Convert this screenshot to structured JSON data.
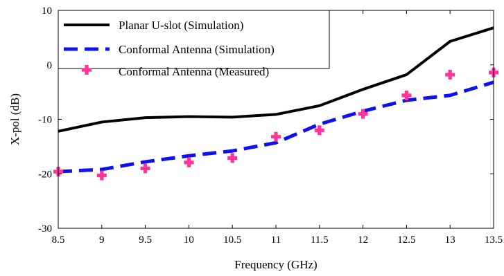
{
  "chart_data": {
    "type": "line",
    "title": "",
    "xlabel": "Frequency (GHz)",
    "ylabel": "X-pol (dB)",
    "xlim": [
      8.5,
      13.5
    ],
    "ylim": [
      -30,
      10
    ],
    "xticks": [
      8.5,
      9,
      9.5,
      10,
      10.5,
      11,
      11.5,
      12,
      12.5,
      13,
      13.5
    ],
    "yticks": [
      -30,
      -20,
      -10,
      0,
      10
    ],
    "xtick_labels": [
      "8.5",
      "9",
      "9.5",
      "10",
      "10.5",
      "11",
      "11.5",
      "12",
      "12.5",
      "13",
      "13.5"
    ],
    "ytick_labels": [
      "-30",
      "-20",
      "-10",
      "0",
      "10"
    ],
    "grid": false,
    "legend_position": "top-left",
    "x": [
      8.5,
      9,
      9.5,
      10,
      10.5,
      11,
      11.5,
      12,
      12.5,
      13,
      13.5
    ],
    "series": [
      {
        "name": "Planar U-slot (Simulation)",
        "style": "solid",
        "color": "#000000",
        "values": [
          -12.2,
          -10.5,
          -9.7,
          -9.5,
          -9.6,
          -9.1,
          -7.5,
          -4.5,
          -1.8,
          4.3,
          6.8
        ]
      },
      {
        "name": "Conformal Antenna (Simulation)",
        "style": "dashed",
        "color": "#1010ee",
        "values": [
          -19.6,
          -19.2,
          -17.8,
          -16.7,
          -15.8,
          -14.3,
          -10.9,
          -8.5,
          -6.5,
          -5.6,
          -3.2
        ]
      },
      {
        "name": "Conformal Antenna (Measured)",
        "style": "marker-plus",
        "color": "#ff3399",
        "values": [
          -19.6,
          -20.3,
          -19.0,
          -17.9,
          -17.1,
          -13.2,
          -12.0,
          -9.0,
          -5.6,
          -1.8,
          -1.4
        ]
      }
    ]
  }
}
